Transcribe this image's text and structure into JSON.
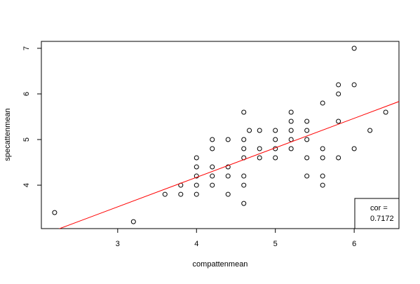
{
  "chart_data": {
    "type": "scatter",
    "x_label": "compattenmean",
    "y_label": "specattenmean",
    "xlim": [
      2.032,
      6.568
    ],
    "ylim": [
      3.048,
      7.152
    ],
    "xticks": [
      3,
      4,
      5,
      6
    ],
    "yticks": [
      4,
      5,
      6,
      7
    ],
    "color": "#000000",
    "x": [
      2.2,
      3.2,
      3.6,
      3.8,
      3.8,
      4.0,
      4.0,
      4.0,
      4.0,
      4.0,
      4.2,
      4.2,
      4.2,
      4.2,
      4.2,
      4.4,
      4.4,
      4.4,
      4.4,
      4.6,
      4.6,
      4.6,
      4.6,
      4.6,
      4.6,
      4.6,
      4.67,
      4.8,
      4.8,
      4.8,
      5.0,
      5.0,
      5.0,
      5.0,
      5.2,
      5.2,
      5.2,
      5.2,
      5.2,
      5.4,
      5.4,
      5.4,
      5.4,
      5.4,
      5.6,
      5.6,
      5.6,
      5.6,
      5.6,
      5.8,
      5.8,
      5.8,
      5.8,
      6.0,
      6.0,
      6.0,
      6.2,
      6.4
    ],
    "values": [
      3.4,
      3.2,
      3.8,
      3.8,
      4.0,
      3.8,
      4.0,
      4.2,
      4.4,
      4.6,
      4.0,
      4.2,
      4.4,
      4.8,
      5.0,
      3.8,
      4.2,
      4.4,
      5.0,
      3.6,
      4.0,
      4.2,
      4.6,
      4.8,
      5.0,
      5.6,
      5.2,
      4.6,
      4.8,
      5.2,
      4.6,
      4.8,
      5.0,
      5.2,
      4.8,
      5.0,
      5.2,
      5.4,
      5.6,
      4.2,
      4.6,
      5.0,
      5.2,
      5.4,
      4.0,
      4.2,
      4.6,
      4.8,
      5.8,
      4.6,
      5.4,
      6.0,
      6.2,
      4.8,
      6.2,
      7.0,
      5.2,
      5.6
    ],
    "line": {
      "intercept": 1.584,
      "slope": 0.647,
      "color": "#ff0000"
    },
    "annotation": [
      "cor =",
      "0.7172"
    ]
  }
}
